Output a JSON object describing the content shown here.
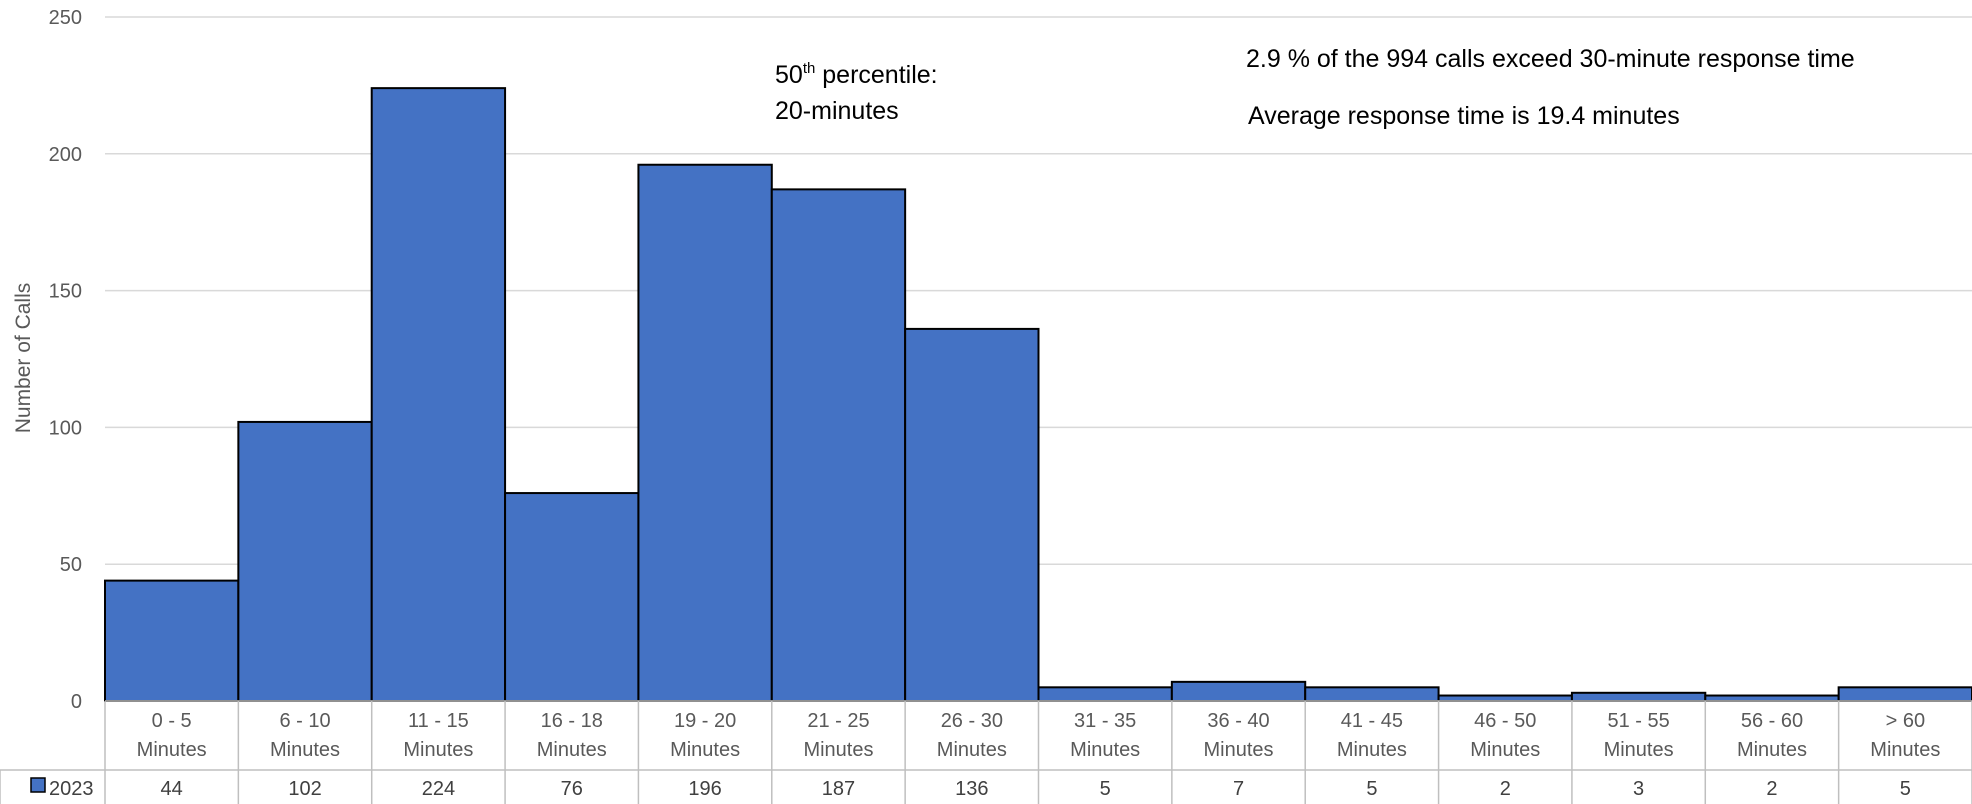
{
  "chart_data": {
    "type": "bar",
    "title": "",
    "xlabel": "",
    "ylabel": "Number of Calls",
    "ylim": [
      0,
      250
    ],
    "yticks": [
      0,
      50,
      100,
      150,
      200,
      250
    ],
    "grid": true,
    "legend": "data-table",
    "categories": [
      [
        "0 - 5",
        "Minutes"
      ],
      [
        "6 - 10",
        "Minutes"
      ],
      [
        "11 - 15",
        "Minutes"
      ],
      [
        "16 - 18",
        "Minutes"
      ],
      [
        "19 - 20",
        "Minutes"
      ],
      [
        "21 - 25",
        "Minutes"
      ],
      [
        "26 - 30",
        "Minutes"
      ],
      [
        "31 - 35",
        "Minutes"
      ],
      [
        "36 - 40",
        "Minutes"
      ],
      [
        "41 - 45",
        "Minutes"
      ],
      [
        "46 - 50",
        "Minutes"
      ],
      [
        "51 - 55",
        "Minutes"
      ],
      [
        "56 - 60",
        "Minutes"
      ],
      [
        "> 60",
        "Minutes"
      ]
    ],
    "series": [
      {
        "name": "2023",
        "color": "#4472C4",
        "values": [
          44,
          102,
          224,
          76,
          196,
          187,
          136,
          5,
          7,
          5,
          2,
          3,
          2,
          5
        ]
      }
    ],
    "annotations": {
      "percentile_label": "50",
      "percentile_sup": "th",
      "percentile_text": " percentile:",
      "percentile_value": "20-minutes",
      "exceed_note": "2.9 % of the 994 calls exceed 30-minute response time",
      "average_note": "Average response time is 19.4 minutes"
    }
  }
}
